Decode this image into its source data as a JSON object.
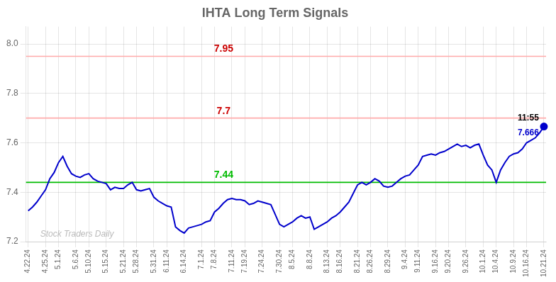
{
  "chart_data": {
    "type": "line",
    "title": "IHTA Long Term Signals",
    "categories": [
      "4.22.24",
      null,
      null,
      null,
      "4.25.24",
      null,
      null,
      "5.1.24",
      null,
      null,
      null,
      "5.6.24",
      null,
      null,
      "5.10.24",
      null,
      null,
      null,
      "5.15.24",
      null,
      null,
      null,
      "5.21.24",
      null,
      null,
      "5.28.24",
      null,
      null,
      null,
      "5.31.24",
      null,
      null,
      "6.11.24",
      null,
      null,
      null,
      "6.14.24",
      null,
      null,
      null,
      "7.1.24",
      null,
      null,
      "7.8.24",
      null,
      null,
      null,
      "7.11.24",
      null,
      null,
      "7.19.24",
      null,
      null,
      null,
      "7.24.24",
      null,
      null,
      null,
      "7.30.24",
      null,
      null,
      "8.5.24",
      null,
      null,
      null,
      "8.8.24",
      null,
      null,
      null,
      "8.13.24",
      null,
      null,
      "8.16.24",
      null,
      null,
      null,
      "8.21.24",
      null,
      null,
      "8.26.24",
      null,
      null,
      null,
      "8.29.24",
      null,
      null,
      null,
      "9.4.24",
      null,
      null,
      "9.11.24",
      null,
      null,
      null,
      "9.16.24",
      null,
      null,
      "9.20.24",
      null,
      null,
      null,
      "9.26.24",
      null,
      null,
      null,
      "10.1.24",
      null,
      null,
      "10.4.24",
      null,
      null,
      null,
      "10.9.24",
      null,
      null,
      "10.16.24",
      null,
      null,
      null,
      "10.21.24"
    ],
    "values": [
      7.325,
      7.34,
      7.36,
      7.385,
      7.41,
      7.455,
      7.48,
      7.52,
      7.545,
      7.505,
      7.475,
      7.465,
      7.46,
      7.47,
      7.475,
      7.455,
      7.445,
      7.44,
      7.435,
      7.41,
      7.42,
      7.415,
      7.415,
      7.43,
      7.44,
      7.41,
      7.405,
      7.41,
      7.415,
      7.38,
      7.365,
      7.355,
      7.345,
      7.34,
      7.26,
      7.245,
      7.235,
      7.255,
      7.26,
      7.265,
      7.27,
      7.28,
      7.285,
      7.32,
      7.335,
      7.355,
      7.37,
      7.375,
      7.37,
      7.37,
      7.365,
      7.35,
      7.355,
      7.365,
      7.36,
      7.355,
      7.35,
      7.31,
      7.27,
      7.26,
      7.27,
      7.28,
      7.295,
      7.305,
      7.295,
      7.3,
      7.25,
      7.26,
      7.27,
      7.28,
      7.295,
      7.305,
      7.32,
      7.34,
      7.36,
      7.395,
      7.43,
      7.44,
      7.43,
      7.44,
      7.455,
      7.445,
      7.425,
      7.42,
      7.425,
      7.44,
      7.455,
      7.465,
      7.47,
      7.49,
      7.51,
      7.545,
      7.55,
      7.555,
      7.55,
      7.56,
      7.565,
      7.575,
      7.585,
      7.595,
      7.585,
      7.59,
      7.58,
      7.59,
      7.595,
      7.55,
      7.51,
      7.49,
      7.44,
      7.49,
      7.52,
      7.545,
      7.555,
      7.56,
      7.575,
      7.6,
      7.61,
      7.62,
      7.64,
      7.666
    ],
    "color": "#0000cc",
    "ylim": [
      7.2,
      8.07
    ],
    "yticks": [
      7.2,
      7.4,
      7.6,
      7.8,
      {
        "value": 8.0,
        "label": "8.0"
      }
    ],
    "grid": true,
    "hlines": [
      {
        "value": 7.95,
        "label": "7.95",
        "color": "#ffaaaa",
        "label_color": "#cc0000"
      },
      {
        "value": 7.7,
        "label": "7.7",
        "color": "#ffaaaa",
        "label_color": "#cc0000"
      },
      {
        "value": 7.44,
        "label": "7.44",
        "color": "#00bb00",
        "label_color": "#00bb00"
      }
    ],
    "annotations": [
      {
        "text": "11:55",
        "color": "#000000"
      },
      {
        "text": "7.666",
        "color": "#0000cc"
      }
    ],
    "watermark": {
      "text": "Stock Traders Daily",
      "color": "#bbbbbb"
    }
  }
}
